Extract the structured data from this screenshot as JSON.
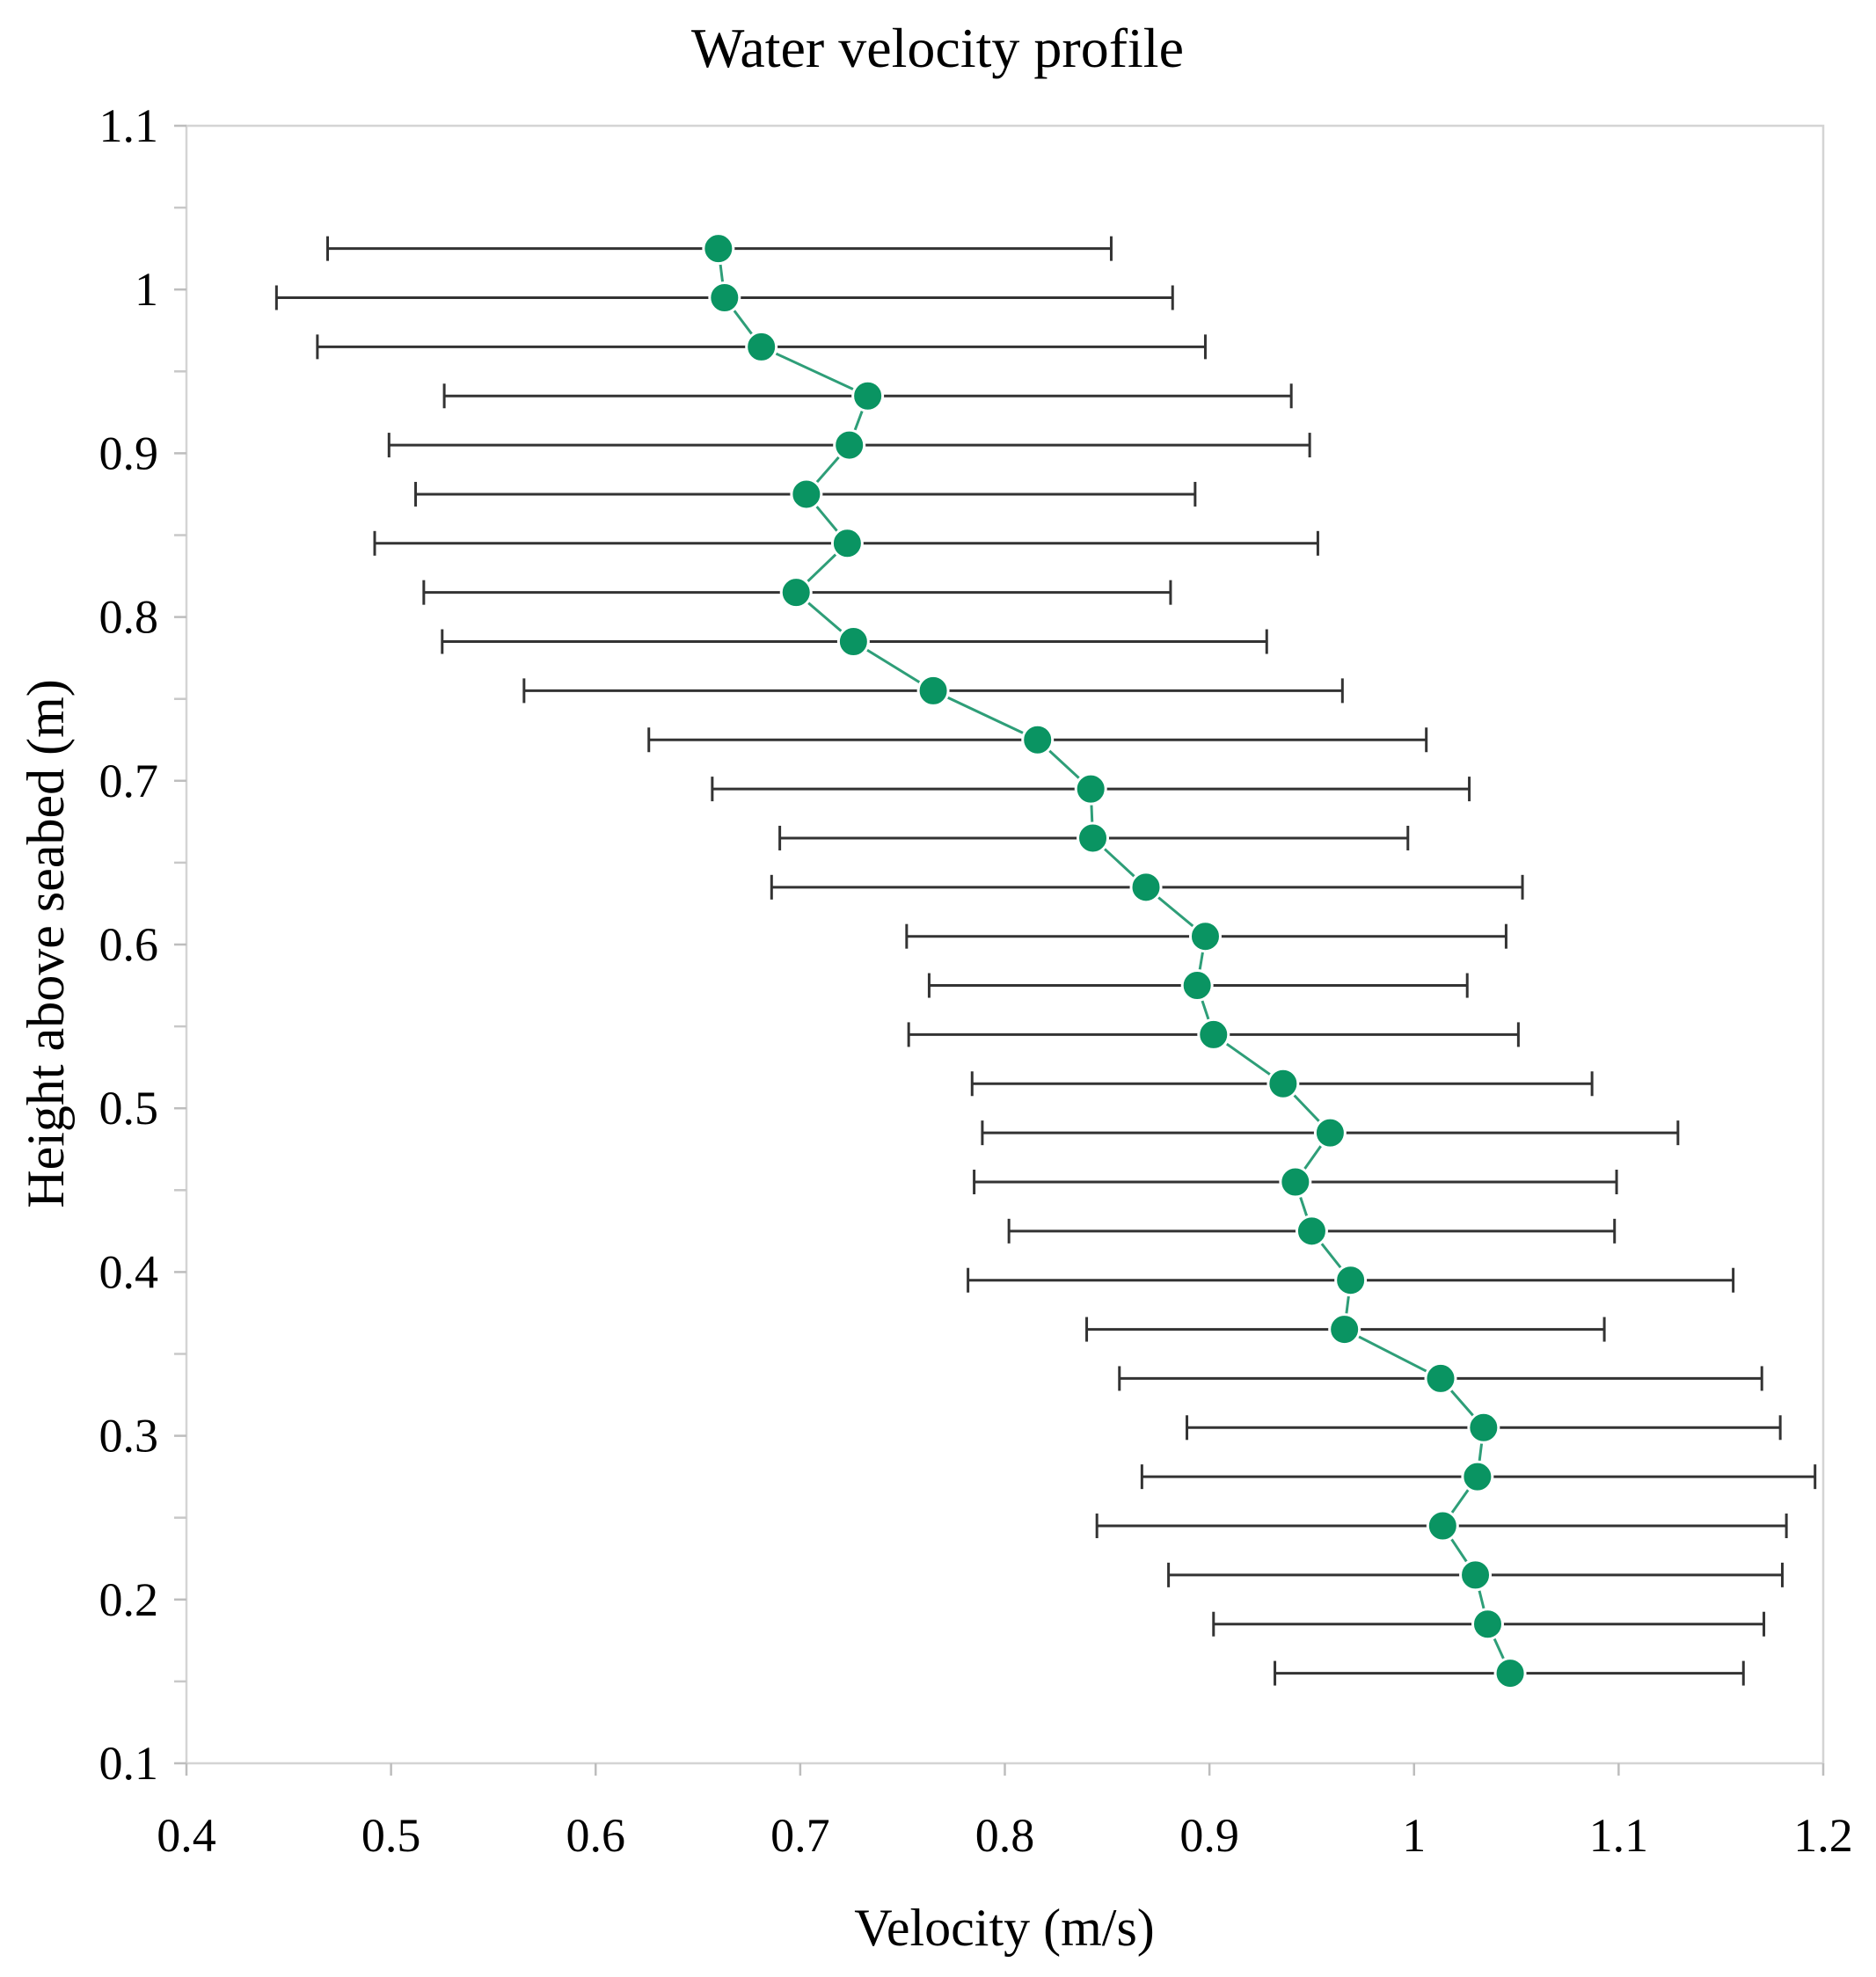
{
  "chart_data": {
    "type": "scatter",
    "title": "Water velocity profile",
    "xlabel": "Velocity (m/s)",
    "ylabel": "Height above seabed (m)",
    "xlim": [
      0.4,
      1.2
    ],
    "ylim": [
      0.1,
      1.1
    ],
    "x_ticks": [
      0.4,
      0.5,
      0.6,
      0.7,
      0.8,
      0.9,
      1.0,
      1.1,
      1.2
    ],
    "x_tick_labels": [
      "0.4",
      "0.5",
      "0.6",
      "0.7",
      "0.8",
      "0.9",
      "1",
      "1.1",
      "1.2"
    ],
    "y_ticks": [
      0.1,
      0.2,
      0.3,
      0.4,
      0.5,
      0.6,
      0.7,
      0.8,
      0.9,
      1.0,
      1.1
    ],
    "y_tick_labels": [
      "0.1",
      "0.2",
      "0.3",
      "0.4",
      "0.5",
      "0.6",
      "0.7",
      "0.8",
      "0.9",
      "1",
      "1.1"
    ],
    "y_minor_ticks": [
      0.15,
      0.25,
      0.35,
      0.45,
      0.55,
      0.65,
      0.75,
      0.85,
      0.95,
      1.05
    ],
    "grid": false,
    "marker_color": "#0a9462",
    "line_color": "#2e9e78",
    "error_bar_color": "#333333",
    "series": [
      {
        "name": "Velocity",
        "points": [
          {
            "h": 1.025,
            "v": 0.66,
            "lo": 0.469,
            "hi": 0.852
          },
          {
            "h": 0.995,
            "v": 0.663,
            "lo": 0.444,
            "hi": 0.882
          },
          {
            "h": 0.965,
            "v": 0.681,
            "lo": 0.464,
            "hi": 0.898
          },
          {
            "h": 0.935,
            "v": 0.733,
            "lo": 0.526,
            "hi": 0.94
          },
          {
            "h": 0.905,
            "v": 0.724,
            "lo": 0.499,
            "hi": 0.949
          },
          {
            "h": 0.875,
            "v": 0.703,
            "lo": 0.512,
            "hi": 0.893
          },
          {
            "h": 0.845,
            "v": 0.723,
            "lo": 0.492,
            "hi": 0.953
          },
          {
            "h": 0.815,
            "v": 0.698,
            "lo": 0.516,
            "hi": 0.881
          },
          {
            "h": 0.785,
            "v": 0.726,
            "lo": 0.525,
            "hi": 0.928
          },
          {
            "h": 0.755,
            "v": 0.765,
            "lo": 0.565,
            "hi": 0.965
          },
          {
            "h": 0.725,
            "v": 0.816,
            "lo": 0.626,
            "hi": 1.006
          },
          {
            "h": 0.695,
            "v": 0.842,
            "lo": 0.657,
            "hi": 1.027
          },
          {
            "h": 0.665,
            "v": 0.843,
            "lo": 0.69,
            "hi": 0.997
          },
          {
            "h": 0.635,
            "v": 0.869,
            "lo": 0.686,
            "hi": 1.053
          },
          {
            "h": 0.605,
            "v": 0.898,
            "lo": 0.752,
            "hi": 1.045
          },
          {
            "h": 0.575,
            "v": 0.894,
            "lo": 0.763,
            "hi": 1.026
          },
          {
            "h": 0.545,
            "v": 0.902,
            "lo": 0.753,
            "hi": 1.051
          },
          {
            "h": 0.515,
            "v": 0.936,
            "lo": 0.784,
            "hi": 1.087
          },
          {
            "h": 0.485,
            "v": 0.959,
            "lo": 0.789,
            "hi": 1.129
          },
          {
            "h": 0.455,
            "v": 0.942,
            "lo": 0.785,
            "hi": 1.099
          },
          {
            "h": 0.425,
            "v": 0.95,
            "lo": 0.802,
            "hi": 1.098
          },
          {
            "h": 0.395,
            "v": 0.969,
            "lo": 0.782,
            "hi": 1.156
          },
          {
            "h": 0.365,
            "v": 0.966,
            "lo": 0.84,
            "hi": 1.093
          },
          {
            "h": 0.335,
            "v": 1.013,
            "lo": 0.856,
            "hi": 1.17
          },
          {
            "h": 0.305,
            "v": 1.034,
            "lo": 0.889,
            "hi": 1.179
          },
          {
            "h": 0.275,
            "v": 1.031,
            "lo": 0.867,
            "hi": 1.196
          },
          {
            "h": 0.245,
            "v": 1.014,
            "lo": 0.845,
            "hi": 1.182
          },
          {
            "h": 0.215,
            "v": 1.03,
            "lo": 0.88,
            "hi": 1.18
          },
          {
            "h": 0.185,
            "v": 1.036,
            "lo": 0.902,
            "hi": 1.171
          },
          {
            "h": 0.155,
            "v": 1.047,
            "lo": 0.932,
            "hi": 1.161
          }
        ]
      }
    ]
  }
}
